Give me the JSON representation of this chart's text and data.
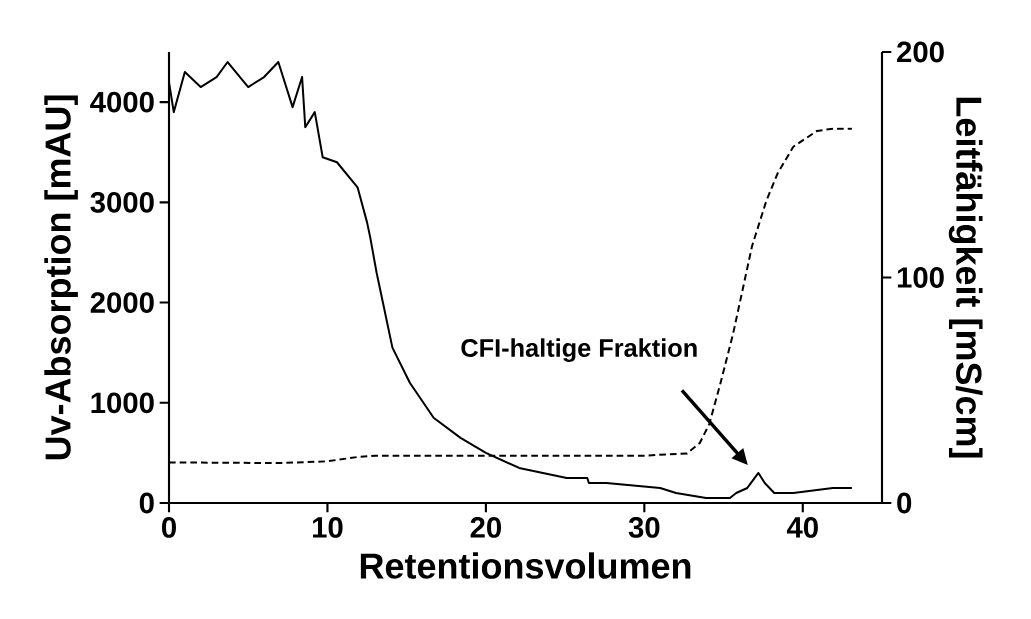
{
  "chart_data": {
    "type": "line",
    "xlabel": "Retentionsvolumen",
    "ylabel": "Uv-Absorption [mAU]",
    "y2label": "Leitfähigkeit [mS/cm]",
    "xlim": [
      0,
      45
    ],
    "xticks": [
      0,
      10,
      20,
      30,
      40
    ],
    "ylim": [
      0,
      4500
    ],
    "yticks": [
      0,
      1000,
      2000,
      3000,
      4000
    ],
    "y2lim": [
      0,
      200
    ],
    "y2ticks": [
      0,
      100,
      200
    ],
    "grid": false,
    "annotations": [
      "CFI-haltige Fraktion"
    ],
    "series": [
      {
        "color": "#000000",
        "line_style": "solid",
        "x": [
          0,
          0.3,
          1,
          2,
          3,
          3.7,
          5,
          6,
          6.9,
          7.8,
          8.4,
          8.6,
          9.2,
          9.7,
          10.6,
          11.9,
          12.5,
          12.7,
          13.1,
          13.5,
          14.1,
          15.2,
          16.7,
          18.4,
          20,
          22.1,
          25.1,
          26.4,
          26.5,
          26.9,
          27.6,
          31,
          32,
          33.9,
          35.4,
          35.8,
          36.5,
          37.2,
          37.6,
          38.2,
          39.4,
          41.9,
          43.1
        ],
        "values": [
          4200,
          3900,
          4300,
          4150,
          4250,
          4400,
          4150,
          4250,
          4400,
          3950,
          4250,
          3750,
          3900,
          3450,
          3400,
          3150,
          2800,
          2650,
          2300,
          2000,
          1550,
          1200,
          850,
          650,
          500,
          350,
          250,
          250,
          200,
          200,
          200,
          150,
          100,
          50,
          50,
          100,
          150,
          300,
          200,
          100,
          100,
          150,
          150
        ]
      },
      {
        "color": "#000000",
        "line_style": "dashed",
        "axis": "y2",
        "x": [
          0,
          7,
          10,
          12,
          13,
          20,
          30,
          32.7,
          33.5,
          34.1,
          34.8,
          35.6,
          36.8,
          37.7,
          38.4,
          39.4,
          40.9,
          41.9,
          43.1
        ],
        "values": [
          18,
          17.7,
          18.5,
          20.5,
          21,
          21,
          21,
          22,
          26.6,
          35,
          53,
          75,
          114,
          134,
          146,
          158,
          165,
          166,
          166
        ]
      }
    ]
  }
}
